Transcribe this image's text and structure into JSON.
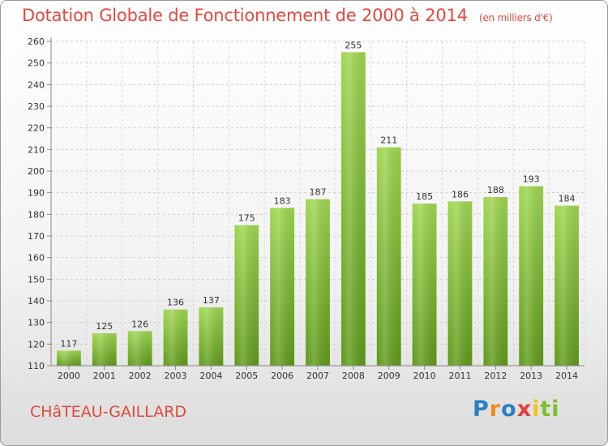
{
  "title": "Dotation Globale de Fonctionnement de 2000 à 2014",
  "unit": "(en milliers d'€)",
  "commune": "CHâTEAU-GAILLARD",
  "logo": [
    "P",
    "r",
    "o",
    "x",
    "i",
    "ti"
  ],
  "chart_data": {
    "type": "bar",
    "title": "Dotation Globale de Fonctionnement de 2000 à 2014",
    "subtitle": "(en milliers d'€)",
    "categories": [
      "2000",
      "2001",
      "2002",
      "2003",
      "2004",
      "2005",
      "2006",
      "2007",
      "2008",
      "2009",
      "2010",
      "2011",
      "2012",
      "2013",
      "2014"
    ],
    "values": [
      117,
      125,
      126,
      136,
      137,
      175,
      183,
      187,
      255,
      211,
      185,
      186,
      188,
      193,
      184
    ],
    "ylim": [
      110,
      260
    ],
    "yticks": [
      110,
      120,
      130,
      140,
      150,
      160,
      170,
      180,
      190,
      200,
      210,
      220,
      230,
      240,
      250,
      260
    ],
    "grid": true,
    "bar_color": "#8cc63f"
  }
}
